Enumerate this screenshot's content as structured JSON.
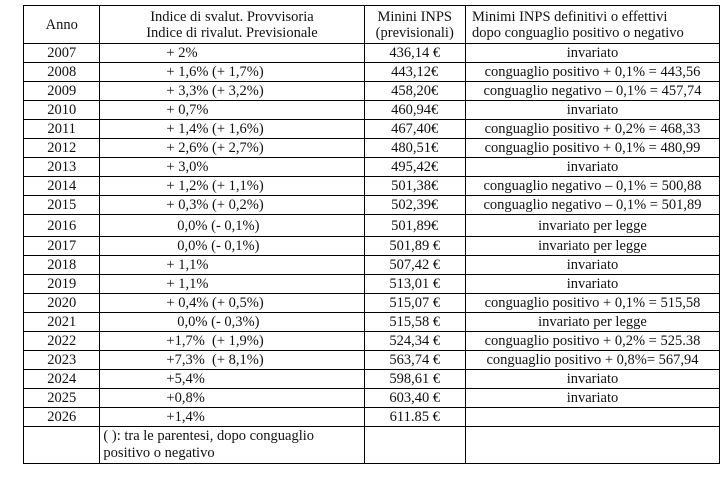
{
  "headers": {
    "anno": "Anno",
    "indice_l1": "Indice di svalut. Provvisoria",
    "indice_l2": "Indice di rivalut. Previsionale",
    "minimi_l1": "Minini INPS",
    "minimi_l2": "(previsionali)",
    "definitivi_l1": "Minimi INPS definitivi o effettivi",
    "definitivi_l2": "dopo conguaglio positivo o negativo"
  },
  "rows": [
    {
      "anno": "2007",
      "indice": "+ 2%",
      "minimi": "436,14 €",
      "definitivi": "invariato"
    },
    {
      "anno": "2008",
      "indice": "+ 1,6% (+ 1,7%)",
      "minimi": "443,12€",
      "definitivi": "conguaglio positivo + 0,1% = 443,56"
    },
    {
      "anno": "2009",
      "indice": "+ 3,3% (+ 3,2%)",
      "minimi": "458,20€",
      "definitivi": "conguaglio negativo – 0,1% = 457,74"
    },
    {
      "anno": "2010",
      "indice": "+ 0,7%",
      "minimi": "460,94€",
      "definitivi": "invariato"
    },
    {
      "anno": "2011",
      "indice": "+ 1,4% (+ 1,6%)",
      "minimi": "467,40€",
      "definitivi": "conguaglio positivo + 0,2% = 468,33"
    },
    {
      "anno": "2012",
      "indice": "+ 2,6% (+ 2,7%)",
      "minimi": "480,51€",
      "definitivi": "conguaglio positivo + 0,1% = 480,99"
    },
    {
      "anno": "2013",
      "indice": "+ 3,0%",
      "minimi": "495,42€",
      "definitivi": "invariato"
    },
    {
      "anno": "2014",
      "indice": "+ 1,2% (+ 1,1%)",
      "minimi": "501,38€",
      "definitivi": "conguaglio negativo – 0,1% = 500,88"
    },
    {
      "anno": "2015",
      "indice": "+ 0,3% (+ 0,2%)",
      "minimi": "502,39€",
      "definitivi": "conguaglio negativo – 0,1% = 501,89"
    },
    {
      "anno": "2016",
      "indice": "   0,0% (- 0,1%)",
      "minimi": "501,89€",
      "definitivi": "invariato per legge"
    },
    {
      "anno": "2017",
      "indice": "   0,0% (- 0,1%)",
      "minimi": "501,89 €",
      "definitivi": "invariato per legge"
    },
    {
      "anno": "2018",
      "indice": "+ 1,1%",
      "minimi": "507,42 €",
      "definitivi": "invariato"
    },
    {
      "anno": "2019",
      "indice": "+ 1,1%",
      "minimi": "513,01 €",
      "definitivi": "invariato"
    },
    {
      "anno": "2020",
      "indice": "+ 0,4% (+ 0,5%)",
      "minimi": "515,07 €",
      "definitivi": "conguaglio positivo + 0,1% = 515,58"
    },
    {
      "anno": "2021",
      "indice": "   0,0% (- 0,3%)",
      "minimi": "515,58 €",
      "definitivi": "invariato per legge"
    },
    {
      "anno": "2022",
      "indice": "+1,7%  (+ 1,9%)",
      "minimi": "524,34 €",
      "definitivi": "conguaglio positivo + 0,2% = 525.38"
    },
    {
      "anno": "2023",
      "indice": "+7,3%  (+ 8,1%)",
      "minimi": "563,74 €",
      "definitivi": "conguaglio positivo + 0,8%= 567,94"
    },
    {
      "anno": "2024",
      "indice": "+5,4%",
      "minimi": "598,61 €",
      "definitivi": "invariato"
    },
    {
      "anno": "2025",
      "indice": "+0,8%",
      "minimi": "603,40 €",
      "definitivi": "invariato"
    },
    {
      "anno": "2026",
      "indice": "+1,4%",
      "minimi": "611.85 €",
      "definitivi": ""
    }
  ],
  "note": "( ): tra le parentesi, dopo conguaglio positivo o negativo"
}
